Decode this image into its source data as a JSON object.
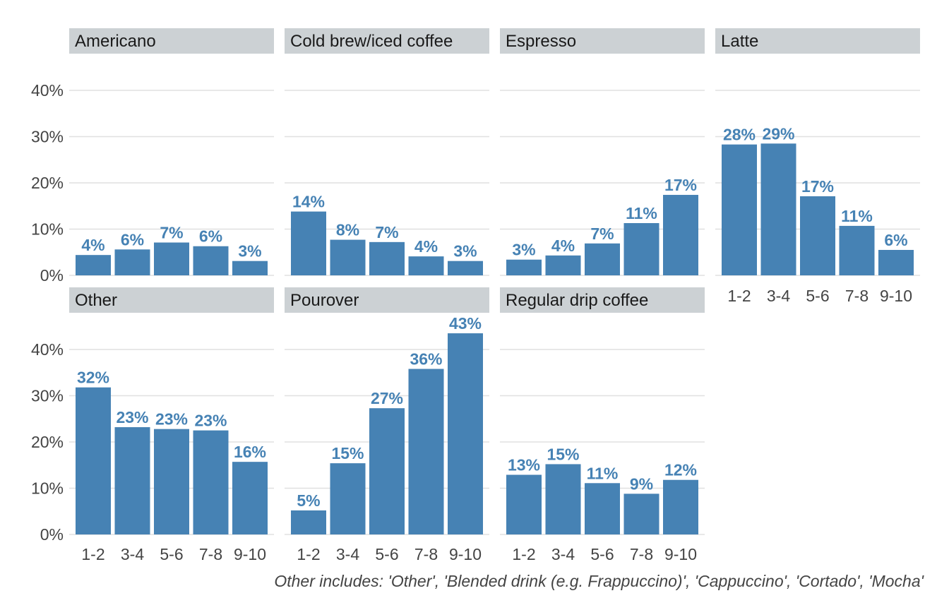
{
  "chart_data": {
    "type": "bar",
    "layout": "faceted",
    "categories": [
      "1-2",
      "3-4",
      "5-6",
      "7-8",
      "9-10"
    ],
    "yticks": [
      "0%",
      "10%",
      "20%",
      "30%",
      "40%"
    ],
    "ylim": [
      0,
      0.46
    ],
    "grid": true,
    "bar_color": "#4682b4",
    "strip_color": "#ccd1d4",
    "caption": "Other includes: 'Other', 'Blended drink (e.g. Frappuccino)', 'Cappuccino', 'Cortado', 'Mocha'",
    "facets": [
      {
        "name": "Americano",
        "values": [
          0.044,
          0.056,
          0.071,
          0.063,
          0.031
        ],
        "labels": [
          "4%",
          "6%",
          "7%",
          "6%",
          "3%"
        ]
      },
      {
        "name": "Cold brew/iced coffee",
        "values": [
          0.138,
          0.077,
          0.072,
          0.041,
          0.031
        ],
        "labels": [
          "14%",
          "8%",
          "7%",
          "4%",
          "3%"
        ]
      },
      {
        "name": "Espresso",
        "values": [
          0.034,
          0.043,
          0.069,
          0.113,
          0.174
        ],
        "labels": [
          "3%",
          "4%",
          "7%",
          "11%",
          "17%"
        ]
      },
      {
        "name": "Latte",
        "values": [
          0.283,
          0.285,
          0.171,
          0.107,
          0.055
        ],
        "labels": [
          "28%",
          "29%",
          "17%",
          "11%",
          "6%"
        ]
      },
      {
        "name": "Other",
        "values": [
          0.318,
          0.232,
          0.228,
          0.225,
          0.157
        ],
        "labels": [
          "32%",
          "23%",
          "23%",
          "23%",
          "16%"
        ]
      },
      {
        "name": "Pourover",
        "values": [
          0.052,
          0.154,
          0.273,
          0.358,
          0.435
        ],
        "labels": [
          "5%",
          "15%",
          "27%",
          "36%",
          "43%"
        ]
      },
      {
        "name": "Regular drip coffee",
        "values": [
          0.129,
          0.152,
          0.111,
          0.088,
          0.118
        ],
        "labels": [
          "13%",
          "15%",
          "11%",
          "9%",
          "12%"
        ]
      }
    ]
  }
}
